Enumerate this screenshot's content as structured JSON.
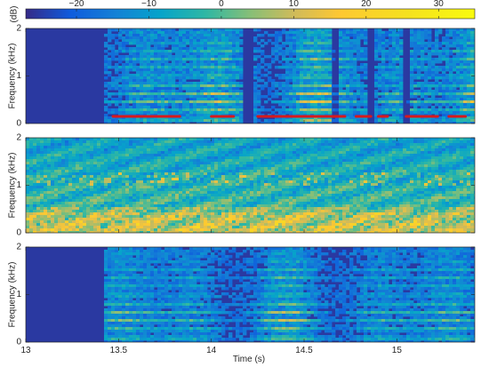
{
  "chart_data": [
    {
      "type": "heatmap",
      "role": "colorbar",
      "label": "(dB)",
      "ticks": [
        -20,
        -10,
        0,
        10,
        20,
        30
      ],
      "tick_labels": [
        "−20",
        "−10",
        "0",
        "10",
        "20",
        "30"
      ],
      "range": [
        -27,
        35
      ],
      "colormap": "parula"
    },
    {
      "type": "heatmap",
      "panel": "top",
      "ylabel": "Frequency (kHz)",
      "yticks": [
        0,
        1,
        2
      ],
      "ylim": [
        0,
        2
      ],
      "xlim": [
        13,
        15.42
      ],
      "x_onset": 13.43,
      "quiet_gaps": [
        [
          14.16,
          14.22
        ],
        [
          14.64,
          14.68
        ],
        [
          14.84,
          14.87
        ],
        [
          15.04,
          15.07
        ]
      ],
      "harmonic_spacing_khz": 0.18,
      "pitch_track_khz": 0.15,
      "pitch_track_color": "#d7191c",
      "pitch_segments": [
        [
          13.47,
          13.83
        ],
        [
          14.0,
          14.12
        ],
        [
          14.25,
          14.55
        ],
        [
          14.55,
          14.72
        ],
        [
          14.78,
          14.86
        ],
        [
          14.9,
          14.95
        ],
        [
          15.05,
          15.22
        ],
        [
          15.28,
          15.37
        ]
      ]
    },
    {
      "type": "heatmap",
      "panel": "middle",
      "ylabel": "Frequency (kHz)",
      "yticks": [
        0,
        1,
        2
      ],
      "ylim": [
        0,
        2
      ],
      "xlim": [
        13,
        15.42
      ],
      "character": "broadband noise"
    },
    {
      "type": "heatmap",
      "panel": "bottom",
      "ylabel": "Frequency (kHz)",
      "xlabel": "Time (s)",
      "yticks": [
        0,
        1,
        2
      ],
      "ylim": [
        0,
        2
      ],
      "xlim": [
        13,
        15.42
      ],
      "xticks": [
        13,
        13.5,
        14,
        14.5,
        15
      ],
      "x_onset": 13.43,
      "harmonic_spacing_khz": 0.18
    }
  ]
}
